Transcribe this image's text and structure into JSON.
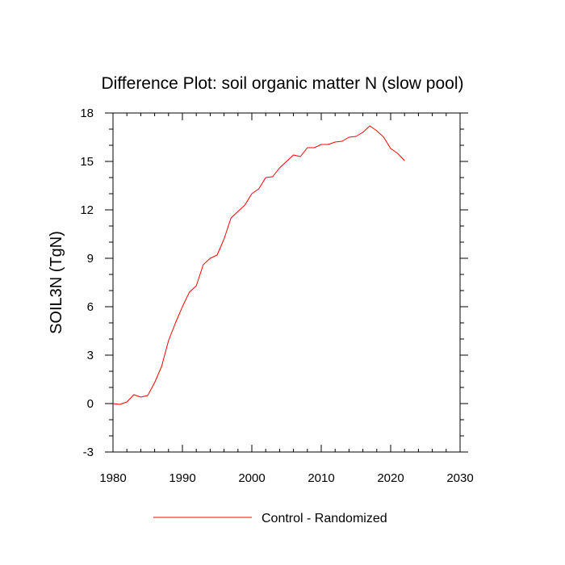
{
  "chart_data": {
    "type": "line",
    "title": "Difference Plot: soil organic matter N (slow pool)",
    "xlabel": "",
    "ylabel": "SOIL3N  (TgN)",
    "xlim": [
      1980,
      2030
    ],
    "ylim": [
      -3,
      18
    ],
    "xticks": [
      1980,
      1990,
      2000,
      2010,
      2020,
      2030
    ],
    "yticks": [
      -3,
      0,
      3,
      6,
      9,
      12,
      15,
      18
    ],
    "grid": false,
    "legend_position": "bottom-center",
    "series": [
      {
        "name": "Control - Randomized",
        "color": "#ff0000",
        "x": [
          1980,
          1981,
          1982,
          1983,
          1984,
          1985,
          1986,
          1987,
          1988,
          1989,
          1990,
          1991,
          1992,
          1993,
          1994,
          1995,
          1996,
          1997,
          1998,
          1999,
          2000,
          2001,
          2002,
          2003,
          2004,
          2005,
          2006,
          2007,
          2008,
          2009,
          2010,
          2011,
          2012,
          2013,
          2014,
          2015,
          2016,
          2017,
          2018,
          2019,
          2020,
          2021,
          2022
        ],
        "values": [
          0.0,
          -0.05,
          0.1,
          0.55,
          0.4,
          0.5,
          1.3,
          2.3,
          3.9,
          5.0,
          6.0,
          6.9,
          7.3,
          8.6,
          9.0,
          9.2,
          10.2,
          11.5,
          11.9,
          12.3,
          13.0,
          13.3,
          14.0,
          14.05,
          14.6,
          15.0,
          15.4,
          15.3,
          15.85,
          15.85,
          16.05,
          16.05,
          16.2,
          16.25,
          16.5,
          16.55,
          16.8,
          17.2,
          16.9,
          16.5,
          15.8,
          15.5,
          15.05
        ]
      }
    ]
  }
}
